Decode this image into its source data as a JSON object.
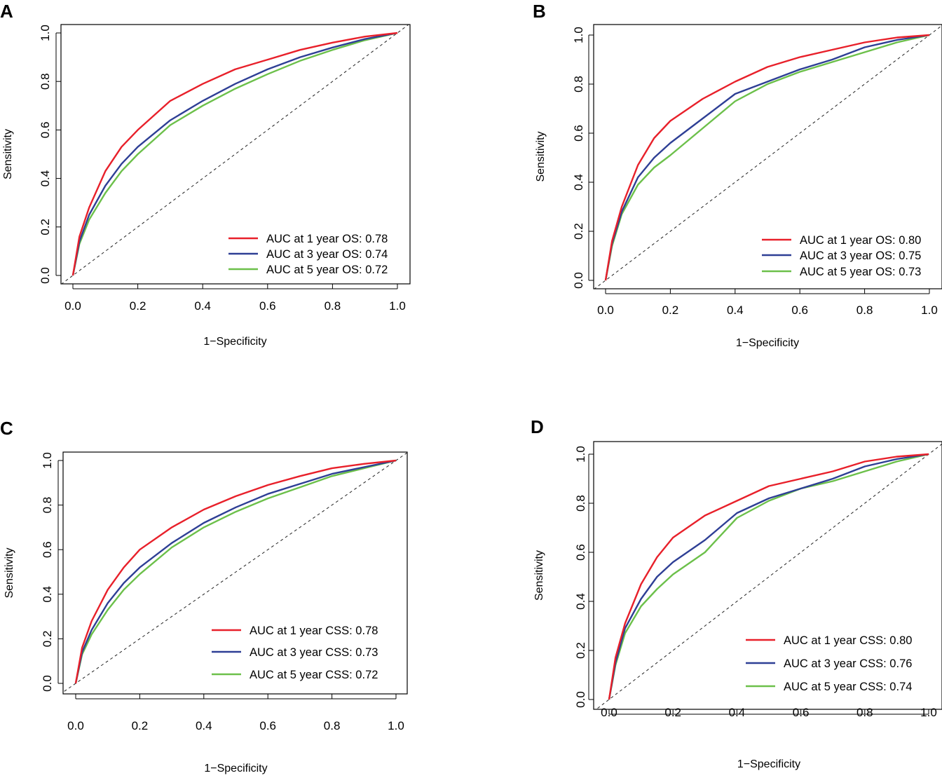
{
  "chart_data": [
    {
      "panel_label": "A",
      "type": "line",
      "xlabel": "1−Specificity",
      "ylabel": "Sensitivity",
      "xlim": [
        0,
        1
      ],
      "ylim": [
        0,
        1
      ],
      "x_ticks": [
        "0.0",
        "0.2",
        "0.4",
        "0.6",
        "0.8",
        "1.0"
      ],
      "y_ticks": [
        "0.0",
        "0.2",
        "0.4",
        "0.6",
        "0.8",
        "1.0"
      ],
      "legend_position": "bottom-right",
      "reference_line": "diagonal",
      "series": [
        {
          "name": "AUC at 1 year OS: 0.78",
          "color": "#e8202a",
          "points": [
            [
              0,
              0
            ],
            [
              0.02,
              0.16
            ],
            [
              0.05,
              0.28
            ],
            [
              0.1,
              0.43
            ],
            [
              0.15,
              0.53
            ],
            [
              0.2,
              0.6
            ],
            [
              0.3,
              0.72
            ],
            [
              0.4,
              0.79
            ],
            [
              0.5,
              0.85
            ],
            [
              0.6,
              0.89
            ],
            [
              0.7,
              0.93
            ],
            [
              0.8,
              0.96
            ],
            [
              0.9,
              0.985
            ],
            [
              1,
              1
            ]
          ]
        },
        {
          "name": "AUC at 3 year OS: 0.74",
          "color": "#2e3f95",
          "points": [
            [
              0,
              0
            ],
            [
              0.02,
              0.14
            ],
            [
              0.05,
              0.25
            ],
            [
              0.1,
              0.37
            ],
            [
              0.15,
              0.46
            ],
            [
              0.2,
              0.53
            ],
            [
              0.3,
              0.64
            ],
            [
              0.4,
              0.72
            ],
            [
              0.5,
              0.79
            ],
            [
              0.6,
              0.85
            ],
            [
              0.7,
              0.9
            ],
            [
              0.8,
              0.94
            ],
            [
              0.9,
              0.975
            ],
            [
              1,
              1
            ]
          ]
        },
        {
          "name": "AUC at 5 year OS: 0.72",
          "color": "#6cc04a",
          "points": [
            [
              0,
              0
            ],
            [
              0.02,
              0.13
            ],
            [
              0.05,
              0.23
            ],
            [
              0.1,
              0.34
            ],
            [
              0.15,
              0.43
            ],
            [
              0.2,
              0.5
            ],
            [
              0.3,
              0.62
            ],
            [
              0.4,
              0.7
            ],
            [
              0.5,
              0.77
            ],
            [
              0.6,
              0.83
            ],
            [
              0.7,
              0.885
            ],
            [
              0.8,
              0.93
            ],
            [
              0.9,
              0.97
            ],
            [
              1,
              1
            ]
          ]
        }
      ]
    },
    {
      "panel_label": "B",
      "type": "line",
      "xlabel": "1−Specificity",
      "ylabel": "Sensitivity",
      "xlim": [
        0,
        1
      ],
      "ylim": [
        0,
        1
      ],
      "x_ticks": [
        "0.0",
        "0.2",
        "0.4",
        "0.6",
        "0.8",
        "1.0"
      ],
      "y_ticks": [
        "0.0",
        "0.2",
        "0.4",
        "0.6",
        "0.8",
        "1.0"
      ],
      "legend_position": "bottom-right",
      "reference_line": "diagonal",
      "series": [
        {
          "name": "AUC at 1 year OS: 0.80",
          "color": "#e8202a",
          "points": [
            [
              0,
              0
            ],
            [
              0.02,
              0.16
            ],
            [
              0.05,
              0.3
            ],
            [
              0.1,
              0.47
            ],
            [
              0.15,
              0.58
            ],
            [
              0.2,
              0.65
            ],
            [
              0.3,
              0.74
            ],
            [
              0.4,
              0.81
            ],
            [
              0.5,
              0.87
            ],
            [
              0.6,
              0.91
            ],
            [
              0.7,
              0.94
            ],
            [
              0.8,
              0.97
            ],
            [
              0.9,
              0.99
            ],
            [
              1,
              1
            ]
          ]
        },
        {
          "name": "AUC at 3 year OS: 0.75",
          "color": "#2e3f95",
          "points": [
            [
              0,
              0
            ],
            [
              0.02,
              0.15
            ],
            [
              0.05,
              0.28
            ],
            [
              0.1,
              0.42
            ],
            [
              0.15,
              0.5
            ],
            [
              0.2,
              0.56
            ],
            [
              0.3,
              0.66
            ],
            [
              0.4,
              0.76
            ],
            [
              0.5,
              0.81
            ],
            [
              0.6,
              0.86
            ],
            [
              0.7,
              0.9
            ],
            [
              0.8,
              0.95
            ],
            [
              0.9,
              0.98
            ],
            [
              1,
              1
            ]
          ]
        },
        {
          "name": "AUC at 5 year OS: 0.73",
          "color": "#6cc04a",
          "points": [
            [
              0,
              0
            ],
            [
              0.02,
              0.14
            ],
            [
              0.05,
              0.27
            ],
            [
              0.1,
              0.39
            ],
            [
              0.15,
              0.46
            ],
            [
              0.2,
              0.51
            ],
            [
              0.3,
              0.62
            ],
            [
              0.4,
              0.73
            ],
            [
              0.5,
              0.8
            ],
            [
              0.6,
              0.85
            ],
            [
              0.7,
              0.89
            ],
            [
              0.8,
              0.93
            ],
            [
              0.9,
              0.97
            ],
            [
              1,
              1
            ]
          ]
        }
      ]
    },
    {
      "panel_label": "C",
      "type": "line",
      "xlabel": "1−Specificity",
      "ylabel": "Sensitivity",
      "xlim": [
        0,
        1
      ],
      "ylim": [
        0,
        1
      ],
      "x_ticks": [
        "0.0",
        "0.2",
        "0.4",
        "0.6",
        "0.8",
        "1.0"
      ],
      "y_ticks": [
        "0.0",
        "0.2",
        "0.4",
        "0.6",
        "0.8",
        "1.0"
      ],
      "legend_position": "bottom-right",
      "reference_line": "diagonal",
      "series": [
        {
          "name": "AUC at 1 year CSS: 0.78",
          "color": "#e8202a",
          "points": [
            [
              0,
              0
            ],
            [
              0.02,
              0.16
            ],
            [
              0.05,
              0.28
            ],
            [
              0.1,
              0.42
            ],
            [
              0.15,
              0.52
            ],
            [
              0.2,
              0.6
            ],
            [
              0.3,
              0.7
            ],
            [
              0.4,
              0.78
            ],
            [
              0.5,
              0.84
            ],
            [
              0.6,
              0.89
            ],
            [
              0.7,
              0.93
            ],
            [
              0.8,
              0.965
            ],
            [
              0.9,
              0.985
            ],
            [
              1,
              1
            ]
          ]
        },
        {
          "name": "AUC at 3 year CSS: 0.73",
          "color": "#2e3f95",
          "points": [
            [
              0,
              0
            ],
            [
              0.02,
              0.14
            ],
            [
              0.05,
              0.24
            ],
            [
              0.1,
              0.36
            ],
            [
              0.15,
              0.45
            ],
            [
              0.2,
              0.52
            ],
            [
              0.3,
              0.63
            ],
            [
              0.4,
              0.72
            ],
            [
              0.5,
              0.79
            ],
            [
              0.6,
              0.85
            ],
            [
              0.7,
              0.895
            ],
            [
              0.8,
              0.94
            ],
            [
              0.9,
              0.97
            ],
            [
              1,
              1
            ]
          ]
        },
        {
          "name": "AUC at 5 year CSS: 0.72",
          "color": "#6cc04a",
          "points": [
            [
              0,
              0
            ],
            [
              0.02,
              0.13
            ],
            [
              0.05,
              0.22
            ],
            [
              0.1,
              0.33
            ],
            [
              0.15,
              0.42
            ],
            [
              0.2,
              0.49
            ],
            [
              0.3,
              0.61
            ],
            [
              0.4,
              0.7
            ],
            [
              0.5,
              0.77
            ],
            [
              0.6,
              0.83
            ],
            [
              0.7,
              0.88
            ],
            [
              0.8,
              0.93
            ],
            [
              0.9,
              0.965
            ],
            [
              1,
              1
            ]
          ]
        }
      ]
    },
    {
      "panel_label": "D",
      "type": "line",
      "xlabel": "1−Specificity",
      "ylabel": "Sensitivity",
      "xlim": [
        0,
        1
      ],
      "ylim": [
        0,
        1
      ],
      "x_ticks": [
        "0.0",
        "0.2",
        "0.4",
        "0.6",
        "0.8",
        "1.0"
      ],
      "y_ticks": [
        "0.0",
        "0.2",
        "0.4",
        "0.6",
        "0.8",
        "1.0"
      ],
      "legend_position": "bottom-right",
      "reference_line": "diagonal",
      "series": [
        {
          "name": "AUC at 1 year CSS: 0.80",
          "color": "#e8202a",
          "points": [
            [
              0,
              0
            ],
            [
              0.02,
              0.17
            ],
            [
              0.05,
              0.31
            ],
            [
              0.1,
              0.47
            ],
            [
              0.15,
              0.58
            ],
            [
              0.2,
              0.66
            ],
            [
              0.3,
              0.75
            ],
            [
              0.4,
              0.81
            ],
            [
              0.5,
              0.87
            ],
            [
              0.6,
              0.9
            ],
            [
              0.7,
              0.93
            ],
            [
              0.8,
              0.97
            ],
            [
              0.9,
              0.99
            ],
            [
              1,
              1
            ]
          ]
        },
        {
          "name": "AUC at 3 year CSS: 0.76",
          "color": "#2e3f95",
          "points": [
            [
              0,
              0
            ],
            [
              0.02,
              0.15
            ],
            [
              0.05,
              0.29
            ],
            [
              0.1,
              0.41
            ],
            [
              0.15,
              0.5
            ],
            [
              0.2,
              0.56
            ],
            [
              0.3,
              0.65
            ],
            [
              0.4,
              0.76
            ],
            [
              0.5,
              0.82
            ],
            [
              0.6,
              0.86
            ],
            [
              0.7,
              0.9
            ],
            [
              0.8,
              0.95
            ],
            [
              0.9,
              0.98
            ],
            [
              1,
              1
            ]
          ]
        },
        {
          "name": "AUC at 5 year CSS: 0.74",
          "color": "#6cc04a",
          "points": [
            [
              0,
              0
            ],
            [
              0.02,
              0.14
            ],
            [
              0.05,
              0.27
            ],
            [
              0.1,
              0.38
            ],
            [
              0.15,
              0.45
            ],
            [
              0.2,
              0.51
            ],
            [
              0.3,
              0.6
            ],
            [
              0.4,
              0.74
            ],
            [
              0.5,
              0.81
            ],
            [
              0.6,
              0.86
            ],
            [
              0.7,
              0.89
            ],
            [
              0.8,
              0.93
            ],
            [
              0.9,
              0.97
            ],
            [
              1,
              1
            ]
          ]
        }
      ]
    }
  ]
}
